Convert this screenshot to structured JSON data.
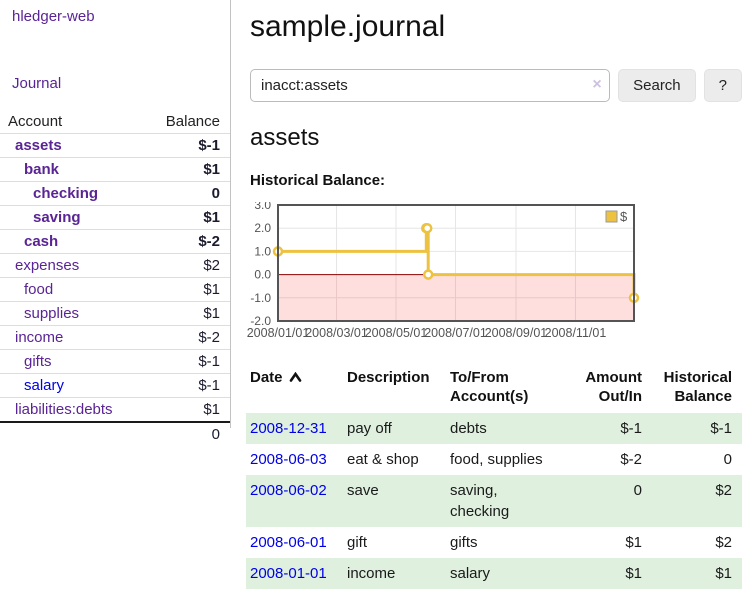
{
  "colors": {
    "link_purple": "#5a2495",
    "link_blue": "#0000e6",
    "negative_red": "#8e1414",
    "negative_red_muted": "#b97c7c",
    "row_stripe_green": "#dff0df",
    "chart_gold": "#edc240",
    "chart_zero_line": "#8b0000",
    "chart_negative_fill": "rgba(255,0,0,0.13)"
  },
  "sidebar": {
    "app_title": "hledger-web",
    "nav_journal_label": "Journal",
    "table": {
      "account_header": "Account",
      "balance_header": "Balance",
      "rows": [
        {
          "account": "assets",
          "balance": "$-1",
          "depth": 1,
          "bold": true,
          "negative": true,
          "blue": false
        },
        {
          "account": "bank",
          "balance": "$1",
          "depth": 2,
          "bold": true,
          "negative": false,
          "blue": false
        },
        {
          "account": "checking",
          "balance": "0",
          "depth": 3,
          "bold": true,
          "negative": false,
          "blue": false
        },
        {
          "account": "saving",
          "balance": "$1",
          "depth": 3,
          "bold": true,
          "negative": false,
          "blue": false
        },
        {
          "account": "cash",
          "balance": "$-2",
          "depth": 2,
          "bold": true,
          "negative": true,
          "blue": false
        },
        {
          "account": "expenses",
          "balance": "$2",
          "depth": 1,
          "bold": false,
          "negative": false,
          "blue": false
        },
        {
          "account": "food",
          "balance": "$1",
          "depth": 2,
          "bold": false,
          "negative": false,
          "blue": false
        },
        {
          "account": "supplies",
          "balance": "$1",
          "depth": 2,
          "bold": false,
          "negative": false,
          "blue": false
        },
        {
          "account": "income",
          "balance": "$-2",
          "depth": 1,
          "bold": false,
          "negative": true,
          "blue": false
        },
        {
          "account": "gifts",
          "balance": "$-1",
          "depth": 2,
          "bold": false,
          "negative": true,
          "blue": false
        },
        {
          "account": "salary",
          "balance": "$-1",
          "depth": 2,
          "bold": false,
          "negative": true,
          "blue": true
        },
        {
          "account": "liabilities:debts",
          "balance": "$1",
          "depth": 1,
          "bold": false,
          "negative": false,
          "blue": false
        }
      ],
      "total": "0"
    }
  },
  "main": {
    "title": "sample.journal",
    "search": {
      "value": "inacct:assets",
      "clear_icon": "×",
      "button_label": "Search",
      "help_label": "?"
    },
    "account_heading": "assets",
    "register": {
      "headers": {
        "date": "Date",
        "description": "Description",
        "accounts": "To/From Account(s)",
        "amount": "Amount Out/In",
        "balance": "Historical Balance"
      },
      "rows": [
        {
          "date": "2008-12-31",
          "description": "pay off",
          "accounts": "debts",
          "amount": "$-1",
          "balance": "$-1",
          "amount_negative": true,
          "balance_negative": true
        },
        {
          "date": "2008-06-03",
          "description": "eat & shop",
          "accounts": "food, supplies",
          "amount": "$-2",
          "balance": "0",
          "amount_negative": true,
          "balance_negative": false
        },
        {
          "date": "2008-06-02",
          "description": "save",
          "accounts": "saving, checking",
          "amount": "0",
          "balance": "$2",
          "amount_negative": false,
          "balance_negative": false
        },
        {
          "date": "2008-06-01",
          "description": "gift",
          "accounts": "gifts",
          "amount": "$1",
          "balance": "$2",
          "amount_negative": false,
          "balance_negative": false
        },
        {
          "date": "2008-01-01",
          "description": "income",
          "accounts": "salary",
          "amount": "$1",
          "balance": "$1",
          "amount_negative": false,
          "balance_negative": false
        }
      ]
    }
  },
  "chart_data": {
    "type": "line",
    "title": "Historical Balance:",
    "step": true,
    "series": [
      {
        "name": "$",
        "color": "#edc240",
        "points": [
          [
            "2008-01-01",
            1
          ],
          [
            "2008-06-01",
            2
          ],
          [
            "2008-06-02",
            2
          ],
          [
            "2008-06-03",
            0
          ],
          [
            "2008-12-31",
            -1
          ]
        ]
      }
    ],
    "x_range": [
      "2008-01-01",
      "2008-12-31"
    ],
    "x_ticks": [
      "2008/01/01",
      "2008/03/01",
      "2008/05/01",
      "2008/07/01",
      "2008/09/01",
      "2008/11/01"
    ],
    "y_range": [
      -2,
      3
    ],
    "y_ticks": [
      "3.0",
      "2.0",
      "1.0",
      "0.0",
      "-1.0",
      "-2.0"
    ],
    "grid": true,
    "legend_position": "top-right",
    "zero_line_color": "#8b0000",
    "negative_fill": "rgba(255,0,0,0.13)",
    "border_color": "#545454"
  }
}
